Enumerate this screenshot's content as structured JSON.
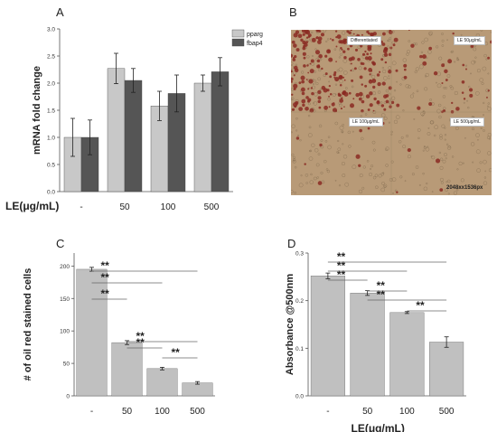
{
  "panel_letters": {
    "a": "A",
    "b": "B",
    "c": "C",
    "d": "D"
  },
  "shared": {
    "x_axis_title": "LE(μg/mL)",
    "categories": [
      "-",
      "50",
      "100",
      "500"
    ]
  },
  "micrograph": {
    "labels": [
      "Differentiated",
      "LE 50μg/mL",
      "LE 100μg/mL",
      "LE 500μg/mL"
    ],
    "scale_text": "2048xx1536px",
    "colors": {
      "background": "#b89a77",
      "stain": "#8a2a22"
    }
  },
  "chart_data": [
    {
      "panel": "A",
      "type": "bar",
      "categories": [
        "-",
        "50",
        "100",
        "500"
      ],
      "series": [
        {
          "name": "pparg",
          "color": "#c8c8c8",
          "values": [
            1.0,
            2.27,
            1.58,
            2.0
          ],
          "errors": [
            0.35,
            0.28,
            0.27,
            0.15
          ]
        },
        {
          "name": "fbap4",
          "color": "#555555",
          "values": [
            1.0,
            2.05,
            1.81,
            2.21
          ],
          "errors": [
            0.32,
            0.22,
            0.34,
            0.26
          ]
        }
      ],
      "ylabel": "mRNA fold change",
      "xlabel": "LE(μg/mL)",
      "ylim": [
        0,
        3.0
      ],
      "yticks": [
        "0.0",
        "0.5",
        "1.0",
        "1.5",
        "2.0",
        "2.5",
        "3.0"
      ],
      "legend_position": "top-right"
    },
    {
      "panel": "C",
      "type": "bar",
      "categories": [
        "-",
        "50",
        "100",
        "500"
      ],
      "values": [
        195,
        82,
        42,
        20
      ],
      "errors": [
        3,
        3,
        2,
        2
      ],
      "color": "#c0c0c0",
      "ylabel": "# of oil red stained cells",
      "ylim": [
        0,
        220
      ],
      "yticks": [
        "0",
        "50",
        "100",
        "150",
        "200"
      ],
      "significance": [
        {
          "from": "-",
          "to": "500",
          "label": "**"
        },
        {
          "from": "-",
          "to": "100",
          "label": "**"
        },
        {
          "from": "-",
          "to": "50",
          "label": "**"
        },
        {
          "from": "50",
          "to": "500",
          "label": "**"
        },
        {
          "from": "50",
          "to": "100",
          "label": "**"
        },
        {
          "from": "100",
          "to": "500",
          "label": "**"
        }
      ]
    },
    {
      "panel": "D",
      "type": "bar",
      "categories": [
        "-",
        "50",
        "100",
        "500"
      ],
      "values": [
        0.252,
        0.216,
        0.175,
        0.113
      ],
      "errors": [
        0.006,
        0.005,
        0.002,
        0.011
      ],
      "color": "#c0c0c0",
      "ylabel": "Absorbance @500nm",
      "xlabel": "LE(μg/mL)",
      "ylim": [
        0,
        0.3
      ],
      "yticks": [
        "0.0",
        "0.1",
        "0.2",
        "0.3"
      ],
      "significance": [
        {
          "from": "-",
          "to": "500",
          "label": "**"
        },
        {
          "from": "-",
          "to": "100",
          "label": "**"
        },
        {
          "from": "-",
          "to": "50",
          "label": "**"
        },
        {
          "from": "50",
          "to": "100",
          "label": "**"
        },
        {
          "from": "50",
          "to": "500",
          "label": "**"
        },
        {
          "from": "100",
          "to": "500",
          "label": "**"
        }
      ]
    }
  ]
}
